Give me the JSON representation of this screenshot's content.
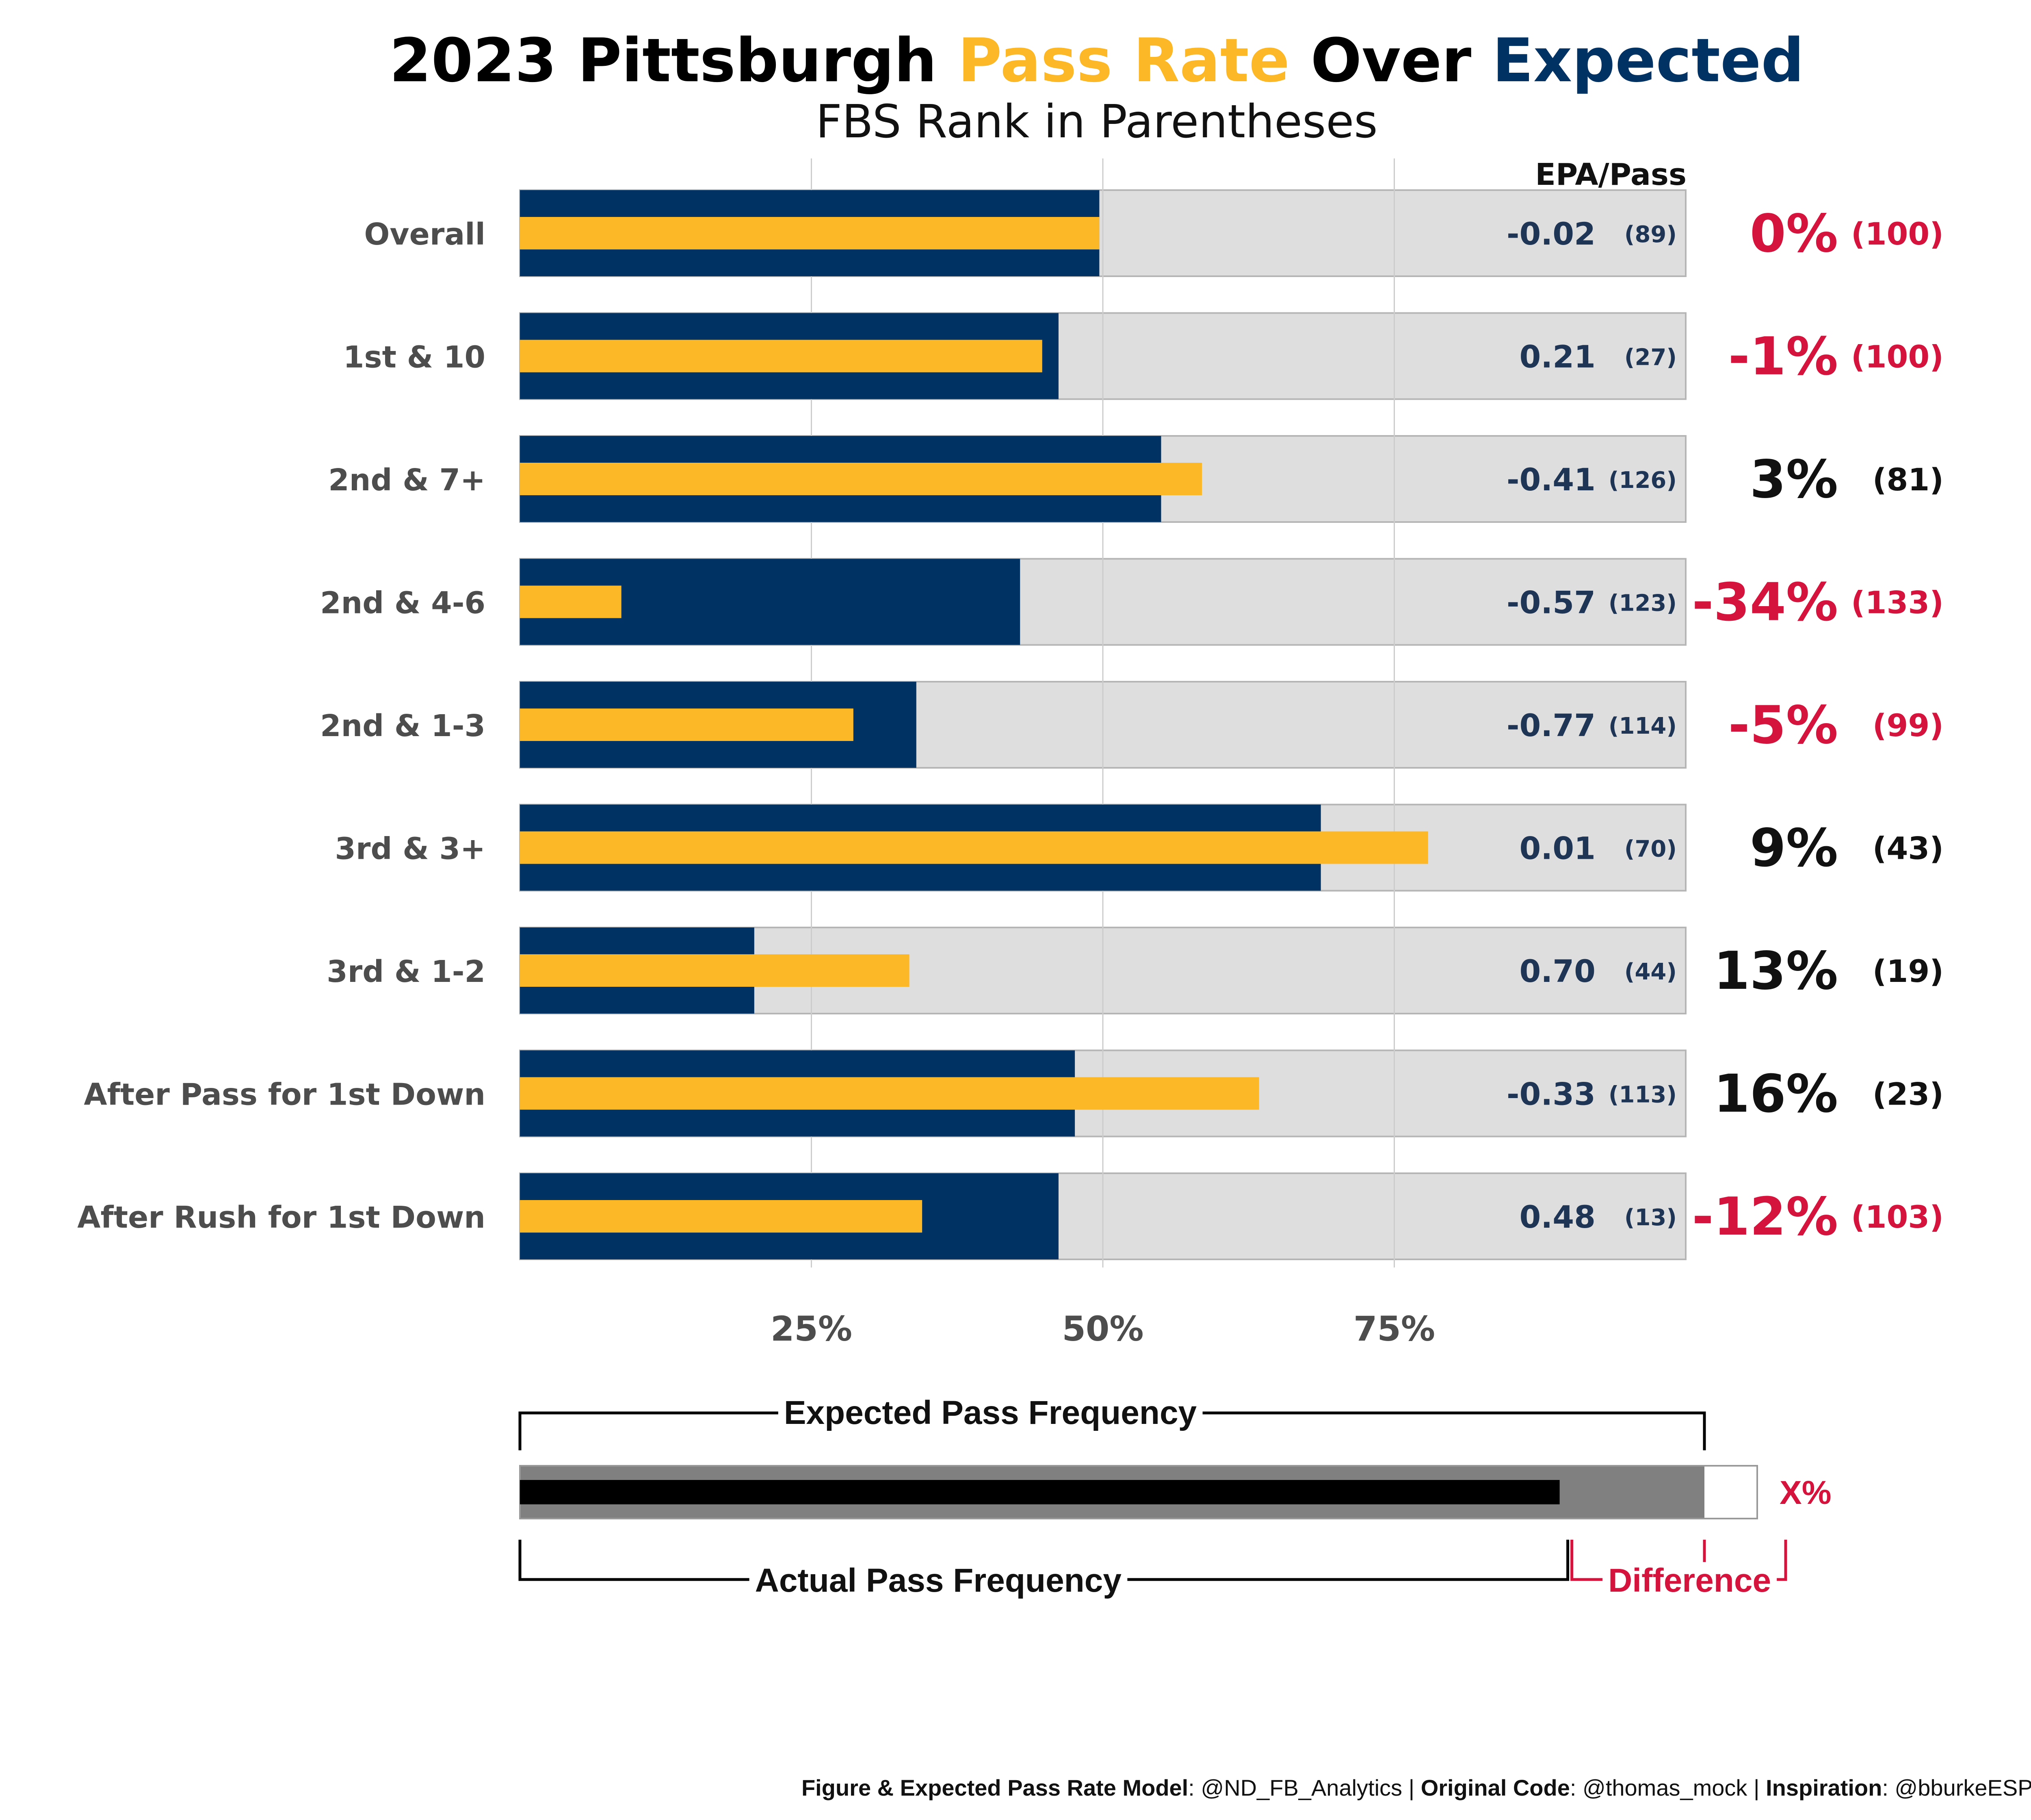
{
  "title": {
    "part1": "2023 Pittsburgh ",
    "part2": "Pass Rate",
    "part3": " Over ",
    "part4": "Expected",
    "color_part2": "#fdb827",
    "color_part4": "#003263"
  },
  "subtitle": "FBS Rank in Parentheses",
  "colors": {
    "expected_bar": "#003263",
    "actual_bar": "#fdb827",
    "track": "#dedede",
    "negative": "#d4143c",
    "positive": "#111111",
    "gridline": "#cccccc"
  },
  "chart_data": {
    "type": "bar",
    "orientation": "horizontal",
    "subtype": "bullet",
    "xlim": [
      0,
      100
    ],
    "x_ticks": [
      25,
      50,
      75
    ],
    "x_tick_labels": [
      "25%",
      "50%",
      "75%"
    ],
    "grid": true,
    "epa_header": "EPA/Pass",
    "categories": [
      "Overall",
      "1st & 10",
      "2nd & 7+",
      "2nd & 4-6",
      "2nd & 1-3",
      "3rd & 3+",
      "3rd & 1-2",
      "After Pass for 1st Down",
      "After Rush for 1st Down"
    ],
    "series": [
      {
        "name": "Expected Pass Frequency",
        "values": [
          49.7,
          46.2,
          55.0,
          42.9,
          34.0,
          68.7,
          20.1,
          47.6,
          46.2
        ]
      },
      {
        "name": "Actual Pass Frequency",
        "values": [
          49.7,
          44.8,
          58.5,
          8.7,
          28.6,
          77.9,
          33.4,
          63.4,
          34.5
        ]
      }
    ],
    "epa_per_pass": [
      "-0.02",
      "0.21",
      "-0.41",
      "-0.57",
      "-0.77",
      "0.01",
      "0.70",
      "-0.33",
      "0.48"
    ],
    "epa_rank": [
      "(89)",
      "(27)",
      "(126)",
      "(123)",
      "(114)",
      "(70)",
      "(44)",
      "(113)",
      "(13)"
    ],
    "difference": [
      "0%",
      "-1%",
      "3%",
      "-34%",
      "-5%",
      "9%",
      "13%",
      "16%",
      "-12%"
    ],
    "difference_rank": [
      "(100)",
      "(100)",
      "(81)",
      "(133)",
      "(99)",
      "(43)",
      "(19)",
      "(23)",
      "(103)"
    ],
    "difference_negative": [
      true,
      true,
      false,
      true,
      true,
      false,
      false,
      false,
      true
    ]
  },
  "legend": {
    "expected_label": "Expected Pass Frequency",
    "actual_label": "Actual Pass Frequency",
    "difference_label": "Difference",
    "difference_value": "X%",
    "expected_fraction": 0.9,
    "actual_fraction": 0.79
  },
  "credit": {
    "b1": "Figure & Expected Pass Rate Model",
    "t1": ": @ND_FB_Analytics | ",
    "b2": "Original Code",
    "t2": ": @thomas_mock | ",
    "b3": "Inspiration",
    "t3": ": @bburkeESPN"
  }
}
